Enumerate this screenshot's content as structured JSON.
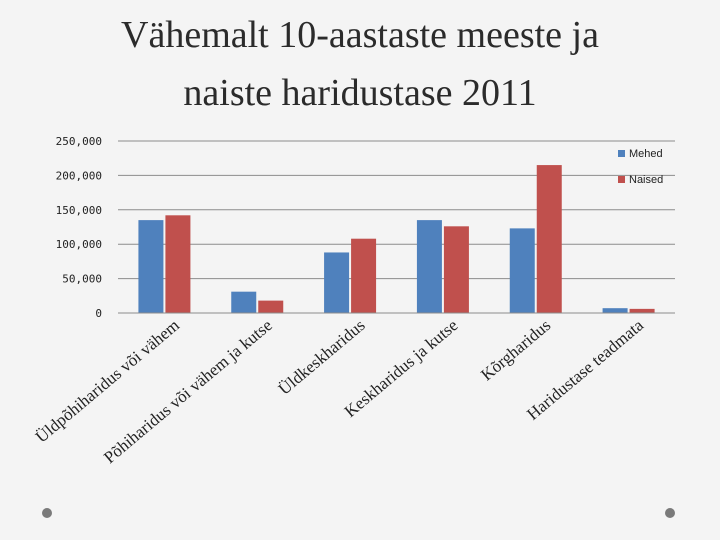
{
  "title_lines": [
    "Vähemalt 10-aastaste meeste ja",
    "naiste haridustase 2011"
  ],
  "colors": {
    "Mehed": "#4f81bd",
    "Naised": "#c0504d",
    "grid": "#8c8c8c",
    "text": "#222222",
    "bullet": "#7a7a7a"
  },
  "chart_data": {
    "type": "bar",
    "title": "Vähemalt 10-aastaste meeste ja naiste haridustase 2011",
    "categories": [
      "Üldpõhiharidus või vähem",
      "Põhiharidus või vähem ja kutse",
      "Üldkeskharidus",
      "Keskharidus ja kutse",
      "Kõrgharidus",
      "Haridustase teadmata"
    ],
    "series": [
      {
        "name": "Mehed",
        "values": [
          135000,
          31000,
          88000,
          135000,
          123000,
          7000
        ]
      },
      {
        "name": "Naised",
        "values": [
          142000,
          18000,
          108000,
          126000,
          215000,
          6000
        ]
      }
    ],
    "yticks": [
      "0",
      "50,000",
      "100,000",
      "150,000",
      "200,000",
      "250,000"
    ],
    "ylim": [
      0,
      250000
    ],
    "grid": true,
    "legend": "right"
  }
}
